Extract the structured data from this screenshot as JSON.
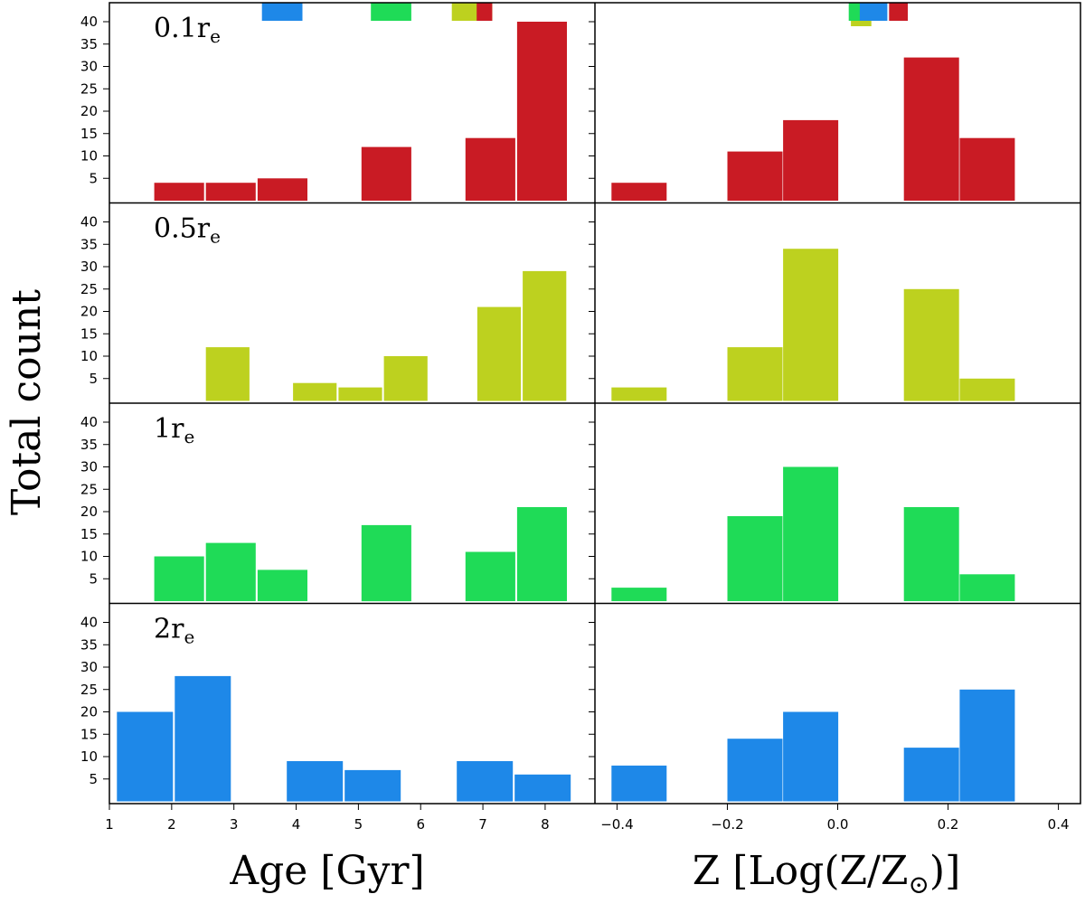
{
  "chart_data": {
    "type": "bar",
    "layout": "4 rows x 2 columns of histograms with shared x axes per column",
    "ylabel": "Total count",
    "ylim": [
      0,
      45
    ],
    "yticks": [
      5,
      10,
      15,
      20,
      25,
      30,
      35,
      40
    ],
    "columns": [
      {
        "id": "age",
        "xlabel": "Age [Gyr]",
        "xlim": [
          1.0,
          8.8
        ],
        "xticks": [
          1,
          2,
          3,
          4,
          5,
          6,
          7,
          8
        ],
        "xtick_labels": [
          "1",
          "2",
          "3",
          "4",
          "5",
          "6",
          "7",
          "8"
        ]
      },
      {
        "id": "metallicity",
        "xlabel": "Z [Log(Z/Z⊙)]",
        "xlabel_main": "Z [Log(Z/Z",
        "xlabel_sub": "⊙",
        "xlabel_tail": ")]",
        "xlim": [
          -0.44,
          0.44
        ],
        "xticks": [
          -0.4,
          -0.2,
          0.0,
          0.2,
          0.4
        ],
        "xtick_labels": [
          "−0.4",
          "−0.2",
          "0.0",
          "0.2",
          "0.4"
        ]
      }
    ],
    "rows": [
      {
        "name": "0.1re",
        "label_main": "0.1r",
        "label_sub": "e",
        "color": "#c91b24",
        "age_bins": [
          {
            "from": 1.72,
            "to": 2.52,
            "value": 4
          },
          {
            "from": 2.55,
            "to": 3.35,
            "value": 4
          },
          {
            "from": 3.38,
            "to": 4.18,
            "value": 5
          },
          {
            "from": 5.05,
            "to": 5.85,
            "value": 12
          },
          {
            "from": 6.72,
            "to": 7.52,
            "value": 14
          },
          {
            "from": 7.55,
            "to": 8.35,
            "value": 40
          }
        ],
        "z_bins": [
          {
            "from": -0.41,
            "to": -0.31,
            "value": 4
          },
          {
            "from": -0.2,
            "to": -0.1,
            "value": 11
          },
          {
            "from": -0.099,
            "to": 0.001,
            "value": 18
          },
          {
            "from": 0.12,
            "to": 0.22,
            "value": 32
          },
          {
            "from": 0.221,
            "to": 0.321,
            "value": 14
          }
        ]
      },
      {
        "name": "0.5re",
        "label_main": "0.5r",
        "label_sub": "e",
        "color": "#bdd11f",
        "age_bins": [
          {
            "from": 2.55,
            "to": 3.25,
            "value": 12
          },
          {
            "from": 3.95,
            "to": 4.65,
            "value": 4
          },
          {
            "from": 4.68,
            "to": 5.38,
            "value": 3
          },
          {
            "from": 5.41,
            "to": 6.11,
            "value": 10
          },
          {
            "from": 6.91,
            "to": 7.61,
            "value": 21
          },
          {
            "from": 7.64,
            "to": 8.34,
            "value": 29
          }
        ],
        "z_bins": [
          {
            "from": -0.41,
            "to": -0.31,
            "value": 3
          },
          {
            "from": -0.2,
            "to": -0.1,
            "value": 12
          },
          {
            "from": -0.099,
            "to": 0.001,
            "value": 34
          },
          {
            "from": 0.12,
            "to": 0.22,
            "value": 25
          },
          {
            "from": 0.221,
            "to": 0.321,
            "value": 5
          }
        ]
      },
      {
        "name": "1re",
        "label_main": "1r",
        "label_sub": "e",
        "color": "#1fdb57",
        "age_bins": [
          {
            "from": 1.72,
            "to": 2.52,
            "value": 10
          },
          {
            "from": 2.55,
            "to": 3.35,
            "value": 13
          },
          {
            "from": 3.38,
            "to": 4.18,
            "value": 7
          },
          {
            "from": 5.05,
            "to": 5.85,
            "value": 17
          },
          {
            "from": 6.72,
            "to": 7.52,
            "value": 11
          },
          {
            "from": 7.55,
            "to": 8.35,
            "value": 21
          }
        ],
        "z_bins": [
          {
            "from": -0.41,
            "to": -0.31,
            "value": 3
          },
          {
            "from": -0.2,
            "to": -0.1,
            "value": 19
          },
          {
            "from": -0.099,
            "to": 0.001,
            "value": 30
          },
          {
            "from": 0.12,
            "to": 0.22,
            "value": 21
          },
          {
            "from": 0.221,
            "to": 0.321,
            "value": 6
          }
        ]
      },
      {
        "name": "2re",
        "label_main": "2r",
        "label_sub": "e",
        "color": "#1e88e8",
        "age_bins": [
          {
            "from": 1.12,
            "to": 2.02,
            "value": 20
          },
          {
            "from": 2.05,
            "to": 2.95,
            "value": 28
          },
          {
            "from": 3.85,
            "to": 4.75,
            "value": 9
          },
          {
            "from": 4.78,
            "to": 5.68,
            "value": 7
          },
          {
            "from": 6.58,
            "to": 7.48,
            "value": 9
          },
          {
            "from": 7.51,
            "to": 8.41,
            "value": 6
          }
        ],
        "z_bins": [
          {
            "from": -0.41,
            "to": -0.31,
            "value": 8
          },
          {
            "from": -0.2,
            "to": -0.1,
            "value": 14
          },
          {
            "from": -0.099,
            "to": 0.001,
            "value": 20
          },
          {
            "from": 0.12,
            "to": 0.22,
            "value": 12
          },
          {
            "from": 0.221,
            "to": 0.321,
            "value": 25
          }
        ]
      }
    ],
    "median_markers": {
      "description": "small colored rectangles at the top of the first row marking the median of each row",
      "age": [
        {
          "row": "2re",
          "from": 3.45,
          "to": 4.1,
          "color": "#1e88e8"
        },
        {
          "row": "1re",
          "from": 5.2,
          "to": 5.85,
          "color": "#1fdb57"
        },
        {
          "row": "0.5re",
          "from": 6.5,
          "to": 7.15,
          "color": "#bdd11f"
        },
        {
          "row": "0.1re",
          "from": 6.9,
          "to": 7.15,
          "color": "#c91b24"
        }
      ],
      "metallicity": [
        {
          "row": "0.5re",
          "from": 0.024,
          "to": 0.061,
          "color": "#bdd11f",
          "drop": true
        },
        {
          "row": "1re",
          "from": 0.02,
          "to": 0.055,
          "color": "#1fdb57"
        },
        {
          "row": "2re",
          "from": 0.04,
          "to": 0.09,
          "color": "#1e88e8"
        },
        {
          "row": "0.1re",
          "from": 0.093,
          "to": 0.127,
          "color": "#c91b24"
        }
      ]
    }
  }
}
